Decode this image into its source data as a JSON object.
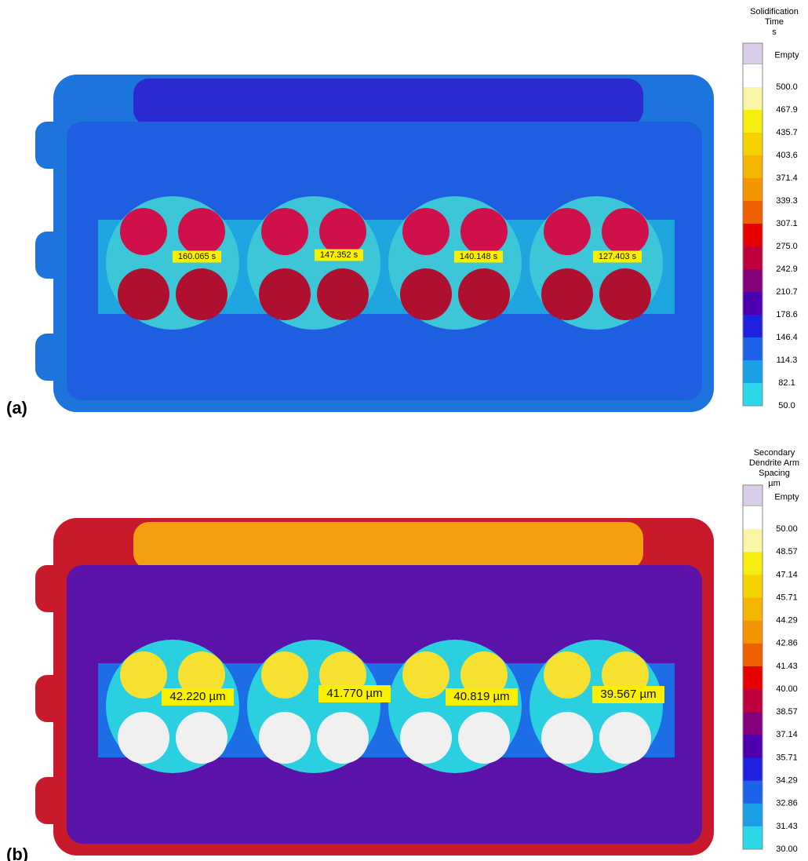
{
  "panels": [
    {
      "label": "(a)",
      "legend": {
        "title": [
          "Solidification",
          "Time",
          "s"
        ],
        "empty": "Empty",
        "empty_color": "#d9cde8",
        "labels": [
          "500.0",
          "467.9",
          "435.7",
          "403.6",
          "371.4",
          "339.3",
          "307.1",
          "275.0",
          "242.9",
          "210.7",
          "178.6",
          "146.4",
          "114.3",
          "82.1",
          "50.0"
        ],
        "colors": [
          "#ffffff",
          "#fbf6a6",
          "#f5ee10",
          "#f4d300",
          "#f3b500",
          "#f39400",
          "#ee6000",
          "#e60000",
          "#c0003c",
          "#86007c",
          "#4c00b0",
          "#1e22e0",
          "#1c62e6",
          "#1aa0e6",
          "#2ad8e8"
        ]
      },
      "annotations": [
        "160.065 s",
        "147.352 s",
        "140.148 s",
        "127.403 s"
      ]
    },
    {
      "label": "(b)",
      "legend": {
        "title": [
          "Secondary",
          "Dendrite Arm",
          "Spacing",
          "µm"
        ],
        "empty": "Empty",
        "empty_color": "#d9cde8",
        "labels": [
          "50.00",
          "48.57",
          "47.14",
          "45.71",
          "44.29",
          "42.86",
          "41.43",
          "40.00",
          "38.57",
          "37.14",
          "35.71",
          "34.29",
          "32.86",
          "31.43",
          "30.00"
        ],
        "colors": [
          "#ffffff",
          "#fbf6a6",
          "#f5ee10",
          "#f4d300",
          "#f3b500",
          "#f39400",
          "#ee6000",
          "#e60000",
          "#c0003c",
          "#86007c",
          "#4c00b0",
          "#1e22e0",
          "#1c62e6",
          "#1aa0e6",
          "#2ad8e8"
        ]
      },
      "annotations": [
        "42.220 µm",
        "41.770 µm",
        "40.819 µm",
        "39.567 µm"
      ]
    }
  ]
}
